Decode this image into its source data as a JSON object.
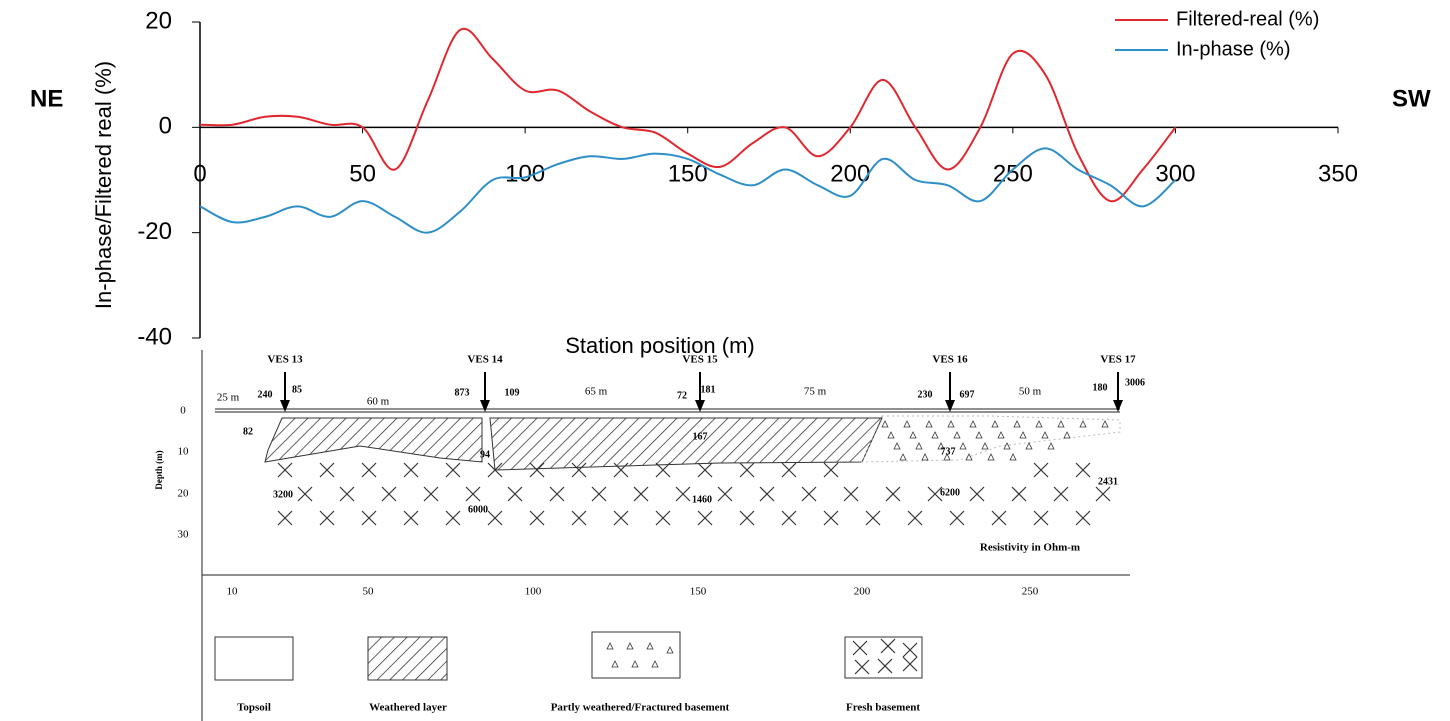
{
  "chart_data": {
    "type": "line",
    "ylabel": "In-phase/Filtered real (%)",
    "xlabel": "Station position (m)",
    "x": [
      0,
      10,
      20,
      30,
      40,
      50,
      60,
      70,
      80,
      90,
      100,
      110,
      120,
      130,
      140,
      150,
      160,
      170,
      180,
      190,
      200,
      210,
      220,
      230,
      240,
      250,
      260,
      270,
      280,
      290,
      300
    ],
    "series": [
      {
        "name": "Filtered-real (%)",
        "color": "#e0282e",
        "values": [
          0.5,
          0.5,
          2,
          2,
          0.5,
          0,
          -8,
          5,
          18.5,
          13,
          7,
          7,
          3,
          0,
          -1,
          -5,
          -7.5,
          -3,
          0,
          -5.5,
          0,
          9,
          0,
          -8,
          0,
          14,
          10,
          -5,
          -14,
          -8,
          0
        ]
      },
      {
        "name": "In-phase (%)",
        "color": "#2e8fc8",
        "values": [
          -15,
          -18,
          -17,
          -15,
          -17,
          -14,
          -17,
          -20,
          -16,
          -10,
          -9.5,
          -7,
          -5.5,
          -6,
          -5,
          -6,
          -9,
          -11,
          -8,
          -11,
          -13,
          -6,
          -10,
          -11,
          -14,
          -8,
          -4,
          -8,
          -11,
          -15,
          -10
        ]
      }
    ],
    "xlim": [
      0,
      350
    ],
    "ylim": [
      -40,
      20
    ],
    "xticks": [
      0,
      50,
      100,
      150,
      200,
      250,
      300,
      350
    ],
    "yticks": [
      -40,
      -20,
      0,
      20
    ],
    "legend": "upper right"
  },
  "direction": {
    "left": "NE",
    "right": "SW"
  },
  "section": {
    "ves": [
      "VES 13",
      "VES 14",
      "VES 15",
      "VES 16",
      "VES 17"
    ],
    "spacings": [
      "25 m",
      "60 m",
      "65 m",
      "75 m",
      "50 m"
    ],
    "resistivities": [
      240,
      85,
      82,
      3200,
      873,
      109,
      94,
      6000,
      72,
      181,
      167,
      1460,
      230,
      697,
      737,
      6200,
      180,
      3006,
      2431
    ],
    "depth_label": "Depth (m)",
    "depth_ticks": [
      0,
      10,
      20,
      30
    ],
    "distance_ticks": [
      10,
      50,
      100,
      150,
      200,
      250
    ],
    "note": "Resistivity in Ohm-m",
    "legend": [
      "Topsoil",
      "Weathered layer",
      "Partly weathered/Fractured basement",
      "Fresh basement"
    ]
  }
}
